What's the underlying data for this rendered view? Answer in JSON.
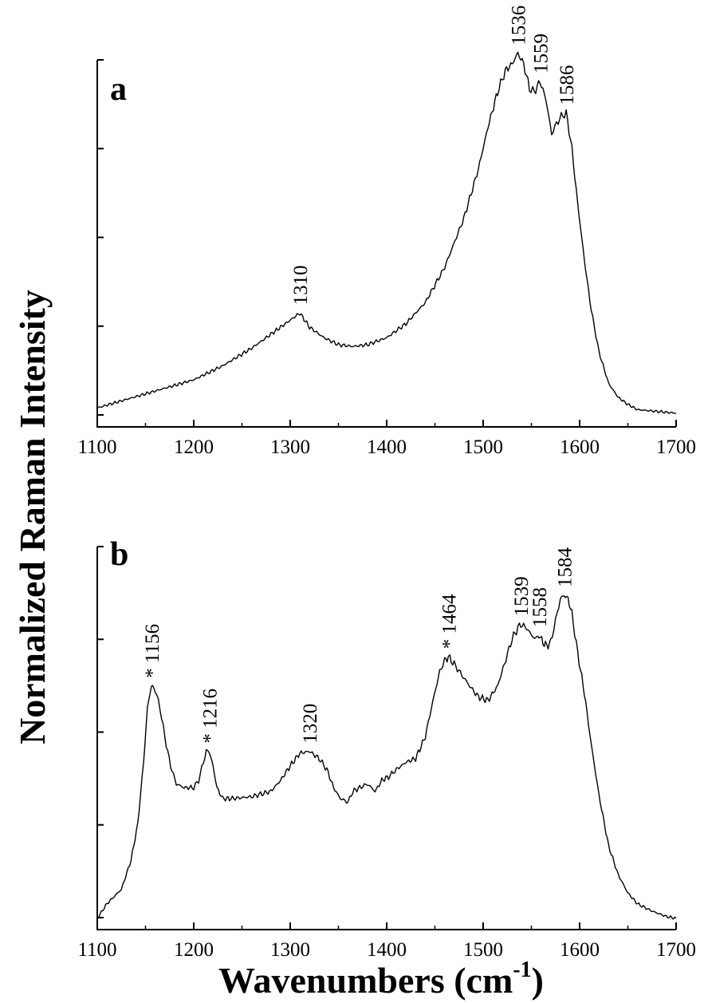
{
  "ylabel": "Normalized Raman Intensity",
  "xlabel": {
    "main": "Wavenumbers (cm",
    "sup": "-1",
    "close": ")"
  },
  "chart_data": [
    {
      "panel": "a",
      "type": "line",
      "xlim": [
        1100,
        1700
      ],
      "x_ticks": [
        1100,
        1200,
        1300,
        1400,
        1500,
        1600,
        1700
      ],
      "y_ticks": 5,
      "y_tick_labels": "none",
      "grid": false,
      "series": [
        {
          "x": [
            1100,
            1150,
            1200,
            1230,
            1260,
            1280,
            1290,
            1300,
            1310,
            1320,
            1335,
            1350,
            1365,
            1380,
            1400,
            1420,
            1440,
            1460,
            1480,
            1495,
            1505,
            1515,
            1523,
            1530,
            1536,
            1542,
            1548,
            1553,
            1559,
            1565,
            1571,
            1576,
            1581,
            1586,
            1592,
            1598,
            1605,
            1612,
            1620,
            1630,
            1640,
            1650,
            1660,
            1680,
            1700
          ],
          "y": [
            0.02,
            0.06,
            0.1,
            0.14,
            0.19,
            0.23,
            0.25,
            0.27,
            0.29,
            0.25,
            0.22,
            0.2,
            0.195,
            0.2,
            0.22,
            0.26,
            0.32,
            0.42,
            0.56,
            0.7,
            0.82,
            0.92,
            0.98,
            1.0,
            1.03,
            1.0,
            0.93,
            0.92,
            0.95,
            0.9,
            0.8,
            0.83,
            0.85,
            0.86,
            0.76,
            0.6,
            0.44,
            0.3,
            0.18,
            0.09,
            0.05,
            0.03,
            0.015,
            0.01,
            0.005
          ]
        }
      ],
      "annotations": [
        {
          "x": 1310,
          "y": 0.29,
          "text": "1310"
        },
        {
          "x": 1536,
          "y": 1.03,
          "text": "1536"
        },
        {
          "x": 1559,
          "y": 0.95,
          "text": "1559"
        },
        {
          "x": 1586,
          "y": 0.86,
          "text": "1586"
        }
      ]
    },
    {
      "panel": "b",
      "type": "line",
      "xlim": [
        1100,
        1700
      ],
      "x_ticks": [
        1100,
        1200,
        1300,
        1400,
        1500,
        1600,
        1700
      ],
      "y_ticks": 5,
      "y_tick_labels": "none",
      "grid": false,
      "series": [
        {
          "x": [
            1100,
            1110,
            1125,
            1135,
            1142,
            1148,
            1152,
            1156,
            1160,
            1165,
            1170,
            1176,
            1182,
            1190,
            1200,
            1205,
            1210,
            1213,
            1216,
            1220,
            1224,
            1230,
            1240,
            1260,
            1280,
            1290,
            1300,
            1310,
            1320,
            1330,
            1338,
            1345,
            1352,
            1360,
            1365,
            1372,
            1380,
            1388,
            1395,
            1402,
            1410,
            1420,
            1430,
            1440,
            1448,
            1455,
            1460,
            1464,
            1470,
            1478,
            1486,
            1495,
            1505,
            1515,
            1522,
            1530,
            1536,
            1539,
            1545,
            1550,
            1555,
            1558,
            1562,
            1566,
            1570,
            1575,
            1580,
            1584,
            1588,
            1592,
            1598,
            1605,
            1612,
            1620,
            1630,
            1640,
            1650,
            1660,
            1675,
            1690,
            1700
          ],
          "y": [
            0.02,
            0.06,
            0.1,
            0.18,
            0.28,
            0.45,
            0.6,
            0.66,
            0.65,
            0.6,
            0.52,
            0.44,
            0.39,
            0.38,
            0.38,
            0.4,
            0.45,
            0.48,
            0.48,
            0.44,
            0.38,
            0.35,
            0.35,
            0.355,
            0.37,
            0.4,
            0.44,
            0.475,
            0.48,
            0.46,
            0.43,
            0.38,
            0.35,
            0.34,
            0.37,
            0.38,
            0.39,
            0.37,
            0.4,
            0.41,
            0.43,
            0.45,
            0.46,
            0.52,
            0.62,
            0.7,
            0.73,
            0.74,
            0.72,
            0.69,
            0.66,
            0.63,
            0.62,
            0.66,
            0.72,
            0.79,
            0.82,
            0.83,
            0.82,
            0.8,
            0.79,
            0.8,
            0.78,
            0.77,
            0.78,
            0.84,
            0.9,
            0.91,
            0.9,
            0.86,
            0.75,
            0.64,
            0.5,
            0.36,
            0.22,
            0.14,
            0.09,
            0.06,
            0.04,
            0.025,
            0.02
          ]
        }
      ],
      "annotations": [
        {
          "x": 1156,
          "y": 0.66,
          "text": "* 1156"
        },
        {
          "x": 1216,
          "y": 0.48,
          "text": "* 1216"
        },
        {
          "x": 1320,
          "y": 0.48,
          "text": "1320"
        },
        {
          "x": 1464,
          "y": 0.74,
          "text": "* 1464"
        },
        {
          "x": 1539,
          "y": 0.83,
          "text": "1539"
        },
        {
          "x": 1558,
          "y": 0.8,
          "text": "1558"
        },
        {
          "x": 1584,
          "y": 0.91,
          "text": "1584"
        }
      ]
    }
  ]
}
